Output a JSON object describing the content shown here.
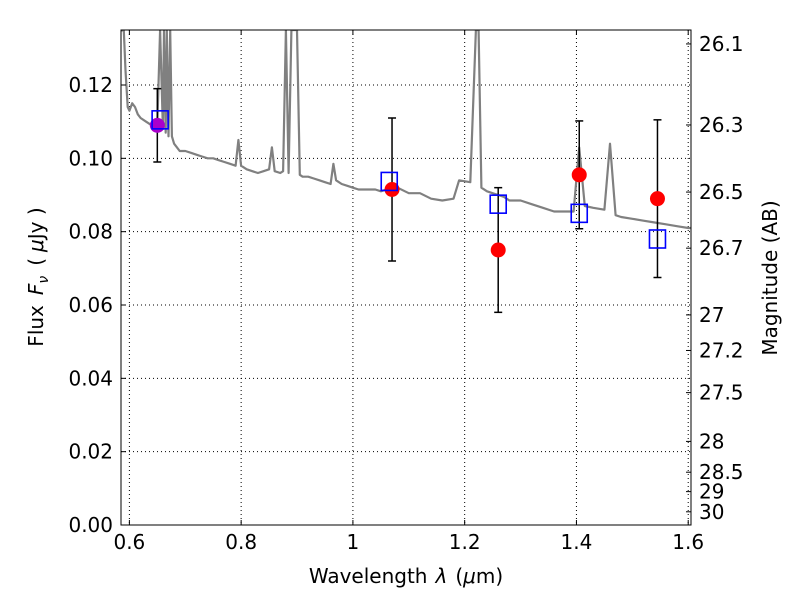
{
  "chart_data": {
    "type": "scatter",
    "xlabel": "Wavelength",
    "xlabel_symbol": "λ",
    "xlabel_unit_open": "(",
    "xlabel_unit_mu": "μ",
    "xlabel_unit_rest": "m)",
    "ylabel": "Flux",
    "ylabel_symbol": "F",
    "ylabel_symbol_sub": "ν",
    "ylabel_unit_open": "(",
    "ylabel_unit_mu": "μ",
    "ylabel_unit_rest": "Jy )",
    "y2label": "Magnitude (AB)",
    "xlim": [
      0.585,
      1.605
    ],
    "ylim": [
      0.0,
      0.135
    ],
    "grid": true,
    "x_ticks": [
      0.6,
      0.8,
      1.0,
      1.2,
      1.4,
      1.6
    ],
    "x_tick_labels": [
      "0.6",
      "0.8",
      "1",
      "1.2",
      "1.4",
      "1.6"
    ],
    "y_ticks": [
      0.0,
      0.02,
      0.04,
      0.06,
      0.08,
      0.1,
      0.12
    ],
    "y_tick_labels": [
      "0.00",
      "0.02",
      "0.04",
      "0.06",
      "0.08",
      "0.10",
      "0.12"
    ],
    "mag_ticks": [
      {
        "label": "26.1",
        "flux": 0.1312
      },
      {
        "label": "26.3",
        "flux": 0.1091
      },
      {
        "label": "26.5",
        "flux": 0.0908
      },
      {
        "label": "26.7",
        "flux": 0.0755
      },
      {
        "label": "27",
        "flux": 0.0573
      },
      {
        "label": "27.2",
        "flux": 0.0476
      },
      {
        "label": "27.5",
        "flux": 0.0361
      },
      {
        "label": "28",
        "flux": 0.0228
      },
      {
        "label": "28.5",
        "flux": 0.0144
      },
      {
        "label": "29",
        "flux": 0.0091
      },
      {
        "label": "30",
        "flux": 0.0036
      }
    ],
    "colors": {
      "model": "#808080",
      "observed": "#ff0000",
      "synthetic": "#0000ff",
      "errorbar": "#000000",
      "overlap": "#aa00cc",
      "grid": "#000000"
    },
    "series": [
      {
        "type": "line",
        "x": [
          0.585,
          0.59,
          0.593,
          0.597,
          0.6,
          0.605,
          0.61,
          0.615,
          0.62,
          0.63,
          0.64,
          0.65,
          0.655,
          0.66,
          0.662,
          0.665,
          0.667,
          0.67,
          0.673,
          0.676,
          0.68,
          0.69,
          0.7,
          0.71,
          0.72,
          0.73,
          0.74,
          0.75,
          0.76,
          0.77,
          0.78,
          0.79,
          0.795,
          0.8,
          0.81,
          0.82,
          0.83,
          0.84,
          0.85,
          0.855,
          0.86,
          0.87,
          0.875,
          0.88,
          0.885,
          0.89,
          0.9,
          0.905,
          0.91,
          0.92,
          0.93,
          0.94,
          0.95,
          0.96,
          0.965,
          0.97,
          0.98,
          0.99,
          1.0,
          1.01,
          1.02,
          1.03,
          1.04,
          1.05,
          1.06,
          1.08,
          1.1,
          1.12,
          1.14,
          1.16,
          1.18,
          1.19,
          1.21,
          1.22,
          1.225,
          1.23,
          1.24,
          1.25,
          1.26,
          1.27,
          1.28,
          1.3,
          1.32,
          1.34,
          1.36,
          1.38,
          1.395,
          1.405,
          1.415,
          1.43,
          1.45,
          1.46,
          1.47,
          1.48,
          1.5,
          1.52,
          1.54,
          1.56,
          1.58,
          1.6,
          1.605
        ],
        "y": [
          0.1349,
          0.1349,
          0.124,
          0.114,
          0.113,
          0.115,
          0.114,
          0.112,
          0.111,
          0.11,
          0.109,
          0.109,
          0.135,
          0.108,
          0.135,
          0.107,
          0.135,
          0.106,
          0.135,
          0.106,
          0.104,
          0.102,
          0.102,
          0.1015,
          0.101,
          0.1005,
          0.1,
          0.1,
          0.0995,
          0.099,
          0.0985,
          0.098,
          0.105,
          0.098,
          0.097,
          0.0965,
          0.096,
          0.0965,
          0.097,
          0.103,
          0.0965,
          0.096,
          0.0965,
          0.135,
          0.096,
          0.135,
          0.135,
          0.0955,
          0.095,
          0.095,
          0.0945,
          0.094,
          0.0935,
          0.093,
          0.0985,
          0.094,
          0.093,
          0.0925,
          0.092,
          0.0915,
          0.0915,
          0.0915,
          0.0915,
          0.091,
          0.0915,
          0.092,
          0.0905,
          0.0905,
          0.089,
          0.0885,
          0.089,
          0.094,
          0.0935,
          0.135,
          0.135,
          0.092,
          0.091,
          0.0905,
          0.09,
          0.0895,
          0.0885,
          0.0885,
          0.0875,
          0.0865,
          0.0855,
          0.0855,
          0.0855,
          0.103,
          0.087,
          0.0865,
          0.086,
          0.104,
          0.0845,
          0.084,
          0.0835,
          0.083,
          0.0825,
          0.082,
          0.0815,
          0.081,
          0.081
        ]
      },
      {
        "type": "errorbar",
        "x": [
          0.65,
          1.07,
          1.26,
          1.405,
          1.545
        ],
        "y": [
          0.109,
          0.0915,
          0.075,
          0.0955,
          0.089
        ],
        "yerr": [
          0.01,
          0.0195,
          0.017,
          0.0147,
          0.0215
        ]
      },
      {
        "type": "scatter",
        "marker": "square",
        "x": [
          0.655,
          1.065,
          1.26,
          1.405,
          1.545
        ],
        "y": [
          0.1105,
          0.0937,
          0.0875,
          0.085,
          0.078
        ]
      }
    ]
  }
}
